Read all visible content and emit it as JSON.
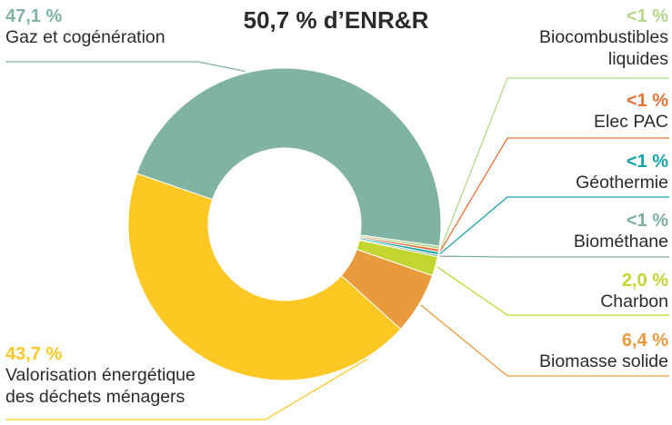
{
  "chart_data": {
    "type": "donut",
    "title": "50,7 % d’ENR&R",
    "slices": [
      {
        "name": "Gaz et cogénération",
        "value": 47.1,
        "value_label": "47,1 %",
        "color": "#80b3a1"
      },
      {
        "name": "Biocombustibles liquides",
        "value": 0.3,
        "value_label": "<1 %",
        "color": "#b5d68c"
      },
      {
        "name": "Elec PAC",
        "value": 0.3,
        "value_label": "<1 %",
        "color": "#e8733a"
      },
      {
        "name": "Géothermie",
        "value": 0.3,
        "value_label": "<1 %",
        "color": "#12a3a3"
      },
      {
        "name": "Biométhane",
        "value": 0.2,
        "value_label": "<1 %",
        "color": "#7fae9c"
      },
      {
        "name": "Charbon",
        "value": 2.0,
        "value_label": "2,0 %",
        "color": "#c3d62f"
      },
      {
        "name": "Biomasse solide",
        "value": 6.4,
        "value_label": "6,4 %",
        "color": "#e89a3c"
      },
      {
        "name": "Valorisation énergétique des déchets ménagers",
        "value": 43.7,
        "value_label": "43,7 %",
        "color": "#fdc724"
      }
    ]
  },
  "labels": {
    "gaz": {
      "pct": "47,1 %",
      "name": "Gaz et cogénération"
    },
    "biocomb": {
      "pct": "<1 %",
      "line1": "Biocombustibles",
      "line2": "liquides"
    },
    "elec": {
      "pct": "<1 %",
      "name": "Elec PAC"
    },
    "geo": {
      "pct": "<1 %",
      "name": "Géothermie"
    },
    "biomethane": {
      "pct": "<1 %",
      "name": "Biométhane"
    },
    "charbon": {
      "pct": "2,0 %",
      "name": "Charbon"
    },
    "biomasse": {
      "pct": "6,4 %",
      "name": "Biomasse solide"
    },
    "dechets": {
      "pct": "43,7 %",
      "line1": "Valorisation énergétique",
      "line2": "des déchets ménagers"
    }
  }
}
